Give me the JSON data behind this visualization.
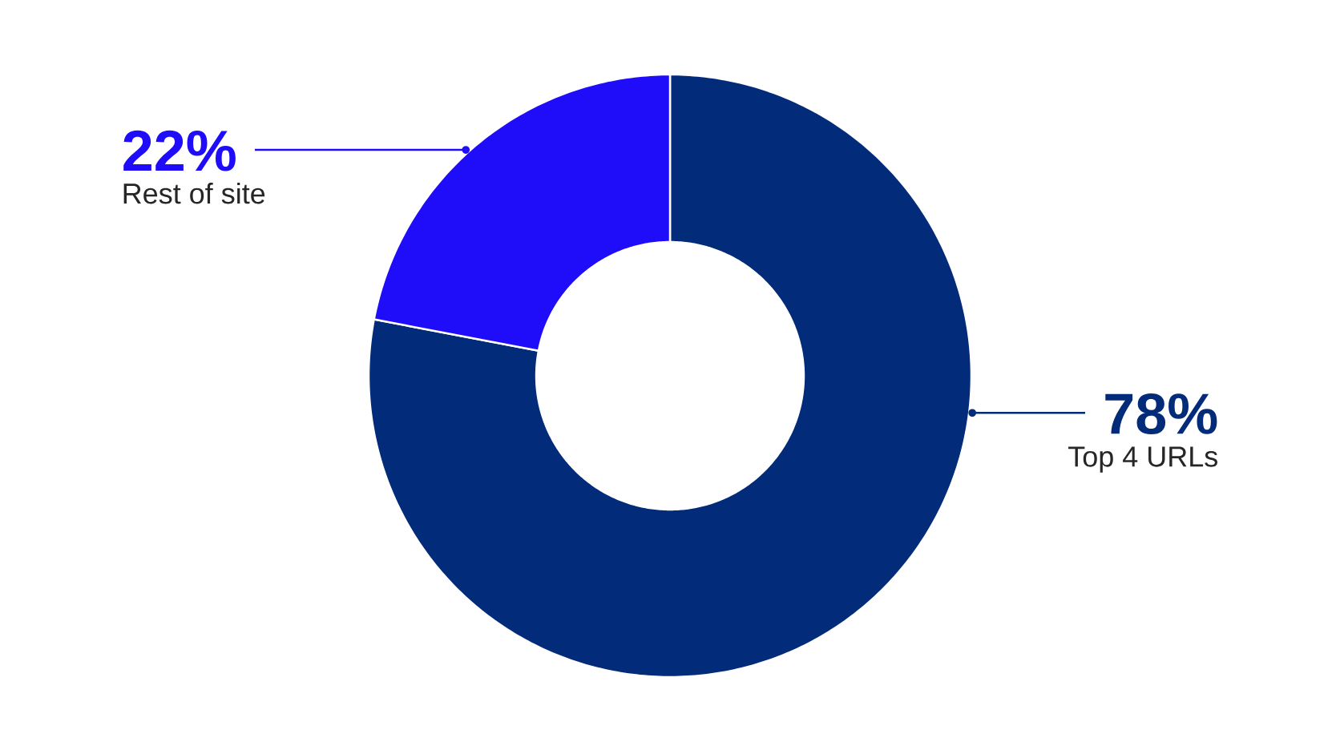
{
  "chart_data": {
    "type": "donut",
    "categories": [
      "Top 4 URLs",
      "Rest of site"
    ],
    "values": [
      78,
      22
    ],
    "colors": [
      "#022b7a",
      "#1f0cf8"
    ],
    "value_labels": [
      "78%",
      "22%"
    ]
  }
}
